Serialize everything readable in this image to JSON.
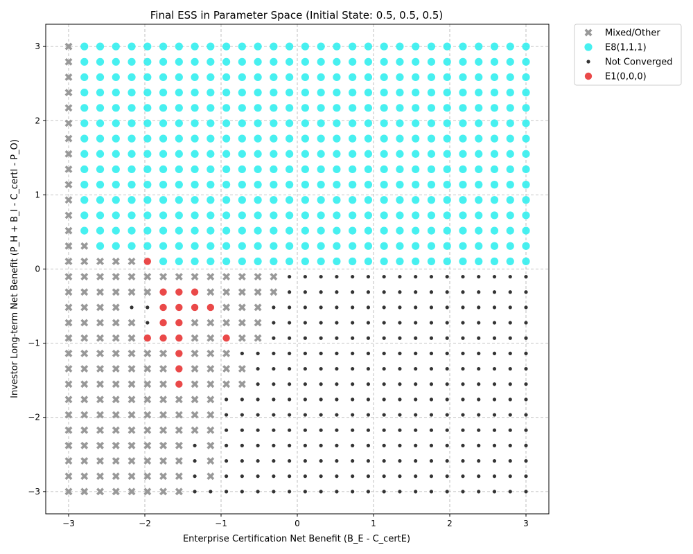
{
  "chart_data": {
    "type": "scatter",
    "title": "Final ESS in Parameter Space (Initial State: 0.5, 0.5, 0.5)",
    "xlabel": "Enterprise Certification Net Benefit (B_E - C_certE)",
    "ylabel": "Investor Long-term Net Benefit (P_H + B_I - C_certI - P_O)",
    "xlim": [
      -3.3,
      3.3
    ],
    "ylim": [
      -3.3,
      3.3
    ],
    "xticks": [
      -3,
      -2,
      -1,
      0,
      1,
      2,
      3
    ],
    "yticks": [
      -3,
      -2,
      -1,
      0,
      1,
      2,
      3
    ],
    "xtick_labels": [
      "−3",
      "−2",
      "−1",
      "0",
      "1",
      "2",
      "3"
    ],
    "ytick_labels": [
      "−3",
      "−2",
      "−1",
      "0",
      "1",
      "2",
      "3"
    ],
    "grid": true,
    "legend_position": "outside-top-right",
    "grid_values": {
      "start": -3.0,
      "stop": 3.0,
      "count": 30
    },
    "series": [
      {
        "name": "Mixed/Other",
        "color": "#999999",
        "marker": "x-filled",
        "label_key": "M"
      },
      {
        "name": "E8(1,1,1)",
        "color": "#33eeee",
        "marker": "circle-large",
        "label_key": "E"
      },
      {
        "name": "Not Converged",
        "color": "#333333",
        "marker": "circle-small",
        "label_key": "N"
      },
      {
        "name": "E1(0,0,0)",
        "color": "#e83a3a",
        "marker": "circle-medium",
        "label_key": "R"
      }
    ],
    "legend_order": [
      "M",
      "E",
      "N",
      "R"
    ],
    "grid_rows_top_to_bottom": [
      "MEEEEEEEEEEEEEEEEEEEEEEEEEEEEE",
      "MEEEEEEEEEEEEEEEEEEEEEEEEEEEEE",
      "MEEEEEEEEEEEEEEEEEEEEEEEEEEEEE",
      "MEEEEEEEEEEEEEEEEEEEEEEEEEEEEE",
      "MEEEEEEEEEEEEEEEEEEEEEEEEEEEEE",
      "MEEEEEEEEEEEEEEEEEEEEEEEEEEEEE",
      "MEEEEEEEEEEEEEEEEEEEEEEEEEEEEE",
      "MEEEEEEEEEEEEEEEEEEEEEEEEEEEEE",
      "MEEEEEEEEEEEEEEEEEEEEEEEEEEEEE",
      "MEEEEEEEEEEEEEEEEEEEEEEEEEEEEE",
      "MEEEEEEEEEEEEEEEEEEEEEEEEEEEEE",
      "MEEEEEEEEEEEEEEEEEEEEEEEEEEEEE",
      "MEEEEEEEEEEEEEEEEEEEEEEEEEEEEE",
      "MMEEEEEEEEEEEEEEEEEEEEEEEEEEEE",
      "MMMMMREEEEEEEEEEEEEEEEEEEEEEEE",
      "MMMMMMMMMMMMMMNNNNNNNNNNNNNNNN",
      "MMMMMMRRRMMMMMNNNNNNNNNNNNNNNN",
      "MMMMNNRRRRMMMNNNNNNNNNNNNNNNNN",
      "MMMMMNRRMMMMMNNNNNNNNNNNNNNNNN",
      "MMMMMRRRMMRMMNNNNNNNNNNNNNNNNN",
      "MMMMMMMRMMMNNNNNNNNNNNNNNNNNNN",
      "MMMMMMMRMMMMNNNNNNNNNNNNNNNNNN",
      "MMMMMMMRMMMMNNNNNNNNNNNNNNNNNN",
      "MMMMMMMMMMNNNNNNNNNNNNNNNNNNNN",
      "MMMMMMMMMMNNNNNNNNNNNNNNNNNNNN",
      "MMMMMMMMMMNNNNNNNNNNNNNNNNNNNN",
      "MMMMMMMMNMNNNNNNNNNNNNNNNNNNNN",
      "MMMMMMMMNMNNNNNNNNNNNNNNNNNNNN",
      "MMMMMMMMNMNNNNNNNNNNNNNNNNNNNN",
      "MMMMMMMMNNNNNNNNNNNNNNNNNNNNNN"
    ]
  }
}
